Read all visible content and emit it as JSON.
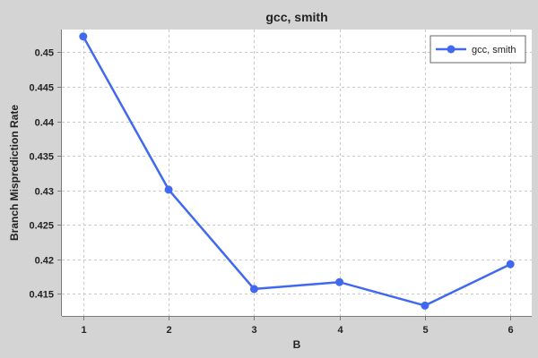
{
  "chart_data": {
    "type": "line",
    "title": "gcc, smith",
    "xlabel": "B",
    "ylabel": "Branch Misprediction Rate",
    "x": [
      1,
      2,
      3,
      4,
      5,
      6
    ],
    "x_ticks": [
      "1",
      "2",
      "3",
      "4",
      "5",
      "6"
    ],
    "xlim": [
      0.75,
      6.25
    ],
    "ylim": [
      0.4118,
      0.4533
    ],
    "y_ticks": [
      0.415,
      0.42,
      0.425,
      0.43,
      0.435,
      0.44,
      0.445,
      0.45
    ],
    "y_tick_labels": [
      "0.415",
      "0.42",
      "0.425",
      "0.43",
      "0.435",
      "0.44",
      "0.445",
      "0.45"
    ],
    "grid": true,
    "legend_position": "top-right",
    "series": [
      {
        "name": "gcc, smith",
        "color": "#4169f0",
        "values": [
          0.4523,
          0.4301,
          0.4157,
          0.4167,
          0.4133,
          0.4193
        ]
      }
    ]
  }
}
